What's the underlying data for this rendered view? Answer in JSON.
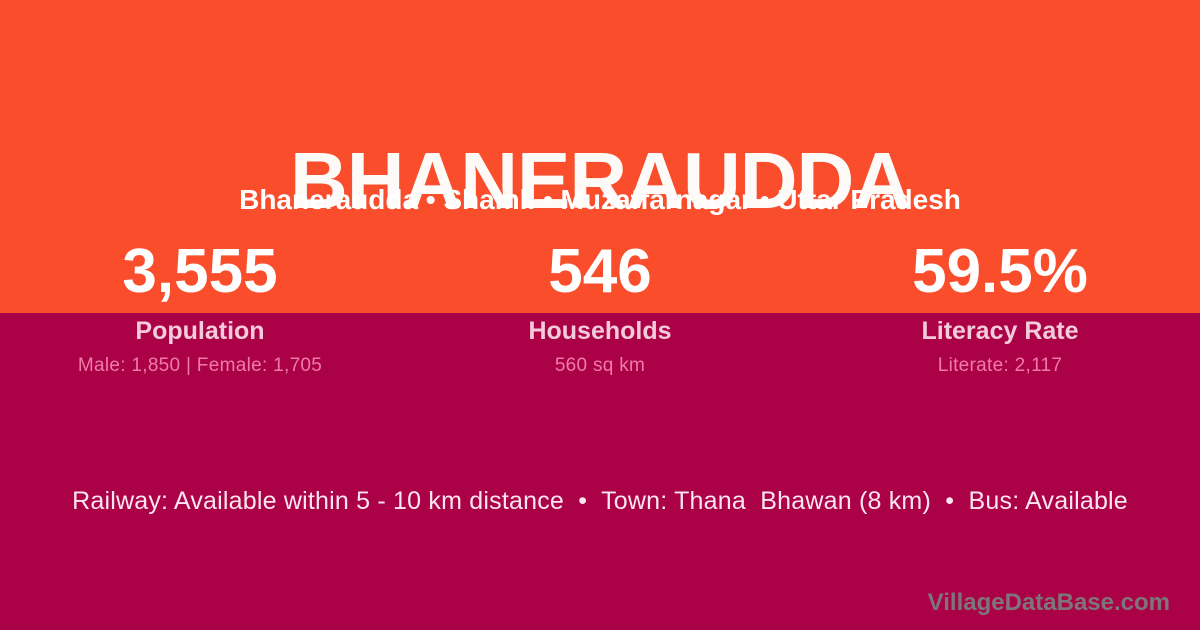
{
  "header": {
    "title": "BHANERAUDDA",
    "breadcrumb": "Bhaneraudda • Shamli • Muzaffarnagar • Uttar Pradesh"
  },
  "stats": [
    {
      "value": "3,555",
      "label": "Population",
      "detail": "Male: 1,850 | Female: 1,705"
    },
    {
      "value": "546",
      "label": "Households",
      "detail": "560 sq km"
    },
    {
      "value": "59.5%",
      "label": "Literacy Rate",
      "detail": "Literate: 2,117"
    }
  ],
  "amenities": {
    "line": "Railway: Available within 5 - 10 km distance  •  Town: Thana  Bhawan (8 km)  •  Bus: Available"
  },
  "footer": {
    "brand": "VillageDataBase.com"
  },
  "colors": {
    "top_band": "#FA4D2B",
    "bottom_band": "#AB0147",
    "title_text": "#FDFAF8",
    "stat_value_text": "#FFFFFF",
    "stat_label_text": "#F4CBDB",
    "stat_detail_text": "#F07CA6",
    "amenities_text": "#FBE5EE",
    "brand_text": "#7E757B"
  }
}
